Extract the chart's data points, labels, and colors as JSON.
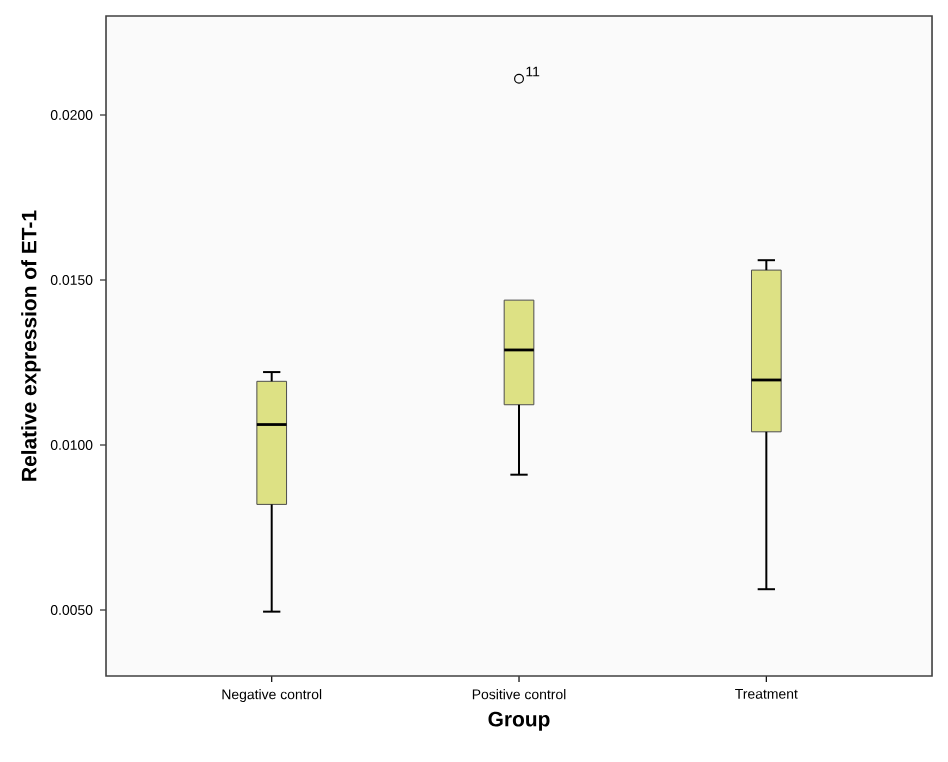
{
  "chart_data": {
    "type": "box",
    "xlabel": "Group",
    "ylabel": "Relative expression of ET-1",
    "categories": [
      "Negative control",
      "Positive control",
      "Treatment"
    ],
    "color": "#dde184",
    "boxes": [
      {
        "low": 0.00495,
        "q1": 0.0082,
        "median": 0.01062,
        "q3": 0.01193,
        "high": 0.01221
      },
      {
        "low": 0.0091,
        "q1": 0.01122,
        "median": 0.01288,
        "q3": 0.01439,
        "high": 0.01439,
        "outliers": [
          0.0211
        ]
      },
      {
        "low": 0.00563,
        "q1": 0.0104,
        "median": 0.01197,
        "q3": 0.0153,
        "high": 0.0156
      }
    ],
    "ylim": [
      0.003,
      0.023
    ],
    "yticks": [
      {
        "value": 0.005,
        "label": "0.0050"
      },
      {
        "value": 0.01,
        "label": "0.0100"
      },
      {
        "value": 0.015,
        "label": "0.0150"
      },
      {
        "value": 0.02,
        "label": "0.0200"
      }
    ],
    "annotations": [
      "11"
    ],
    "grid": false
  }
}
